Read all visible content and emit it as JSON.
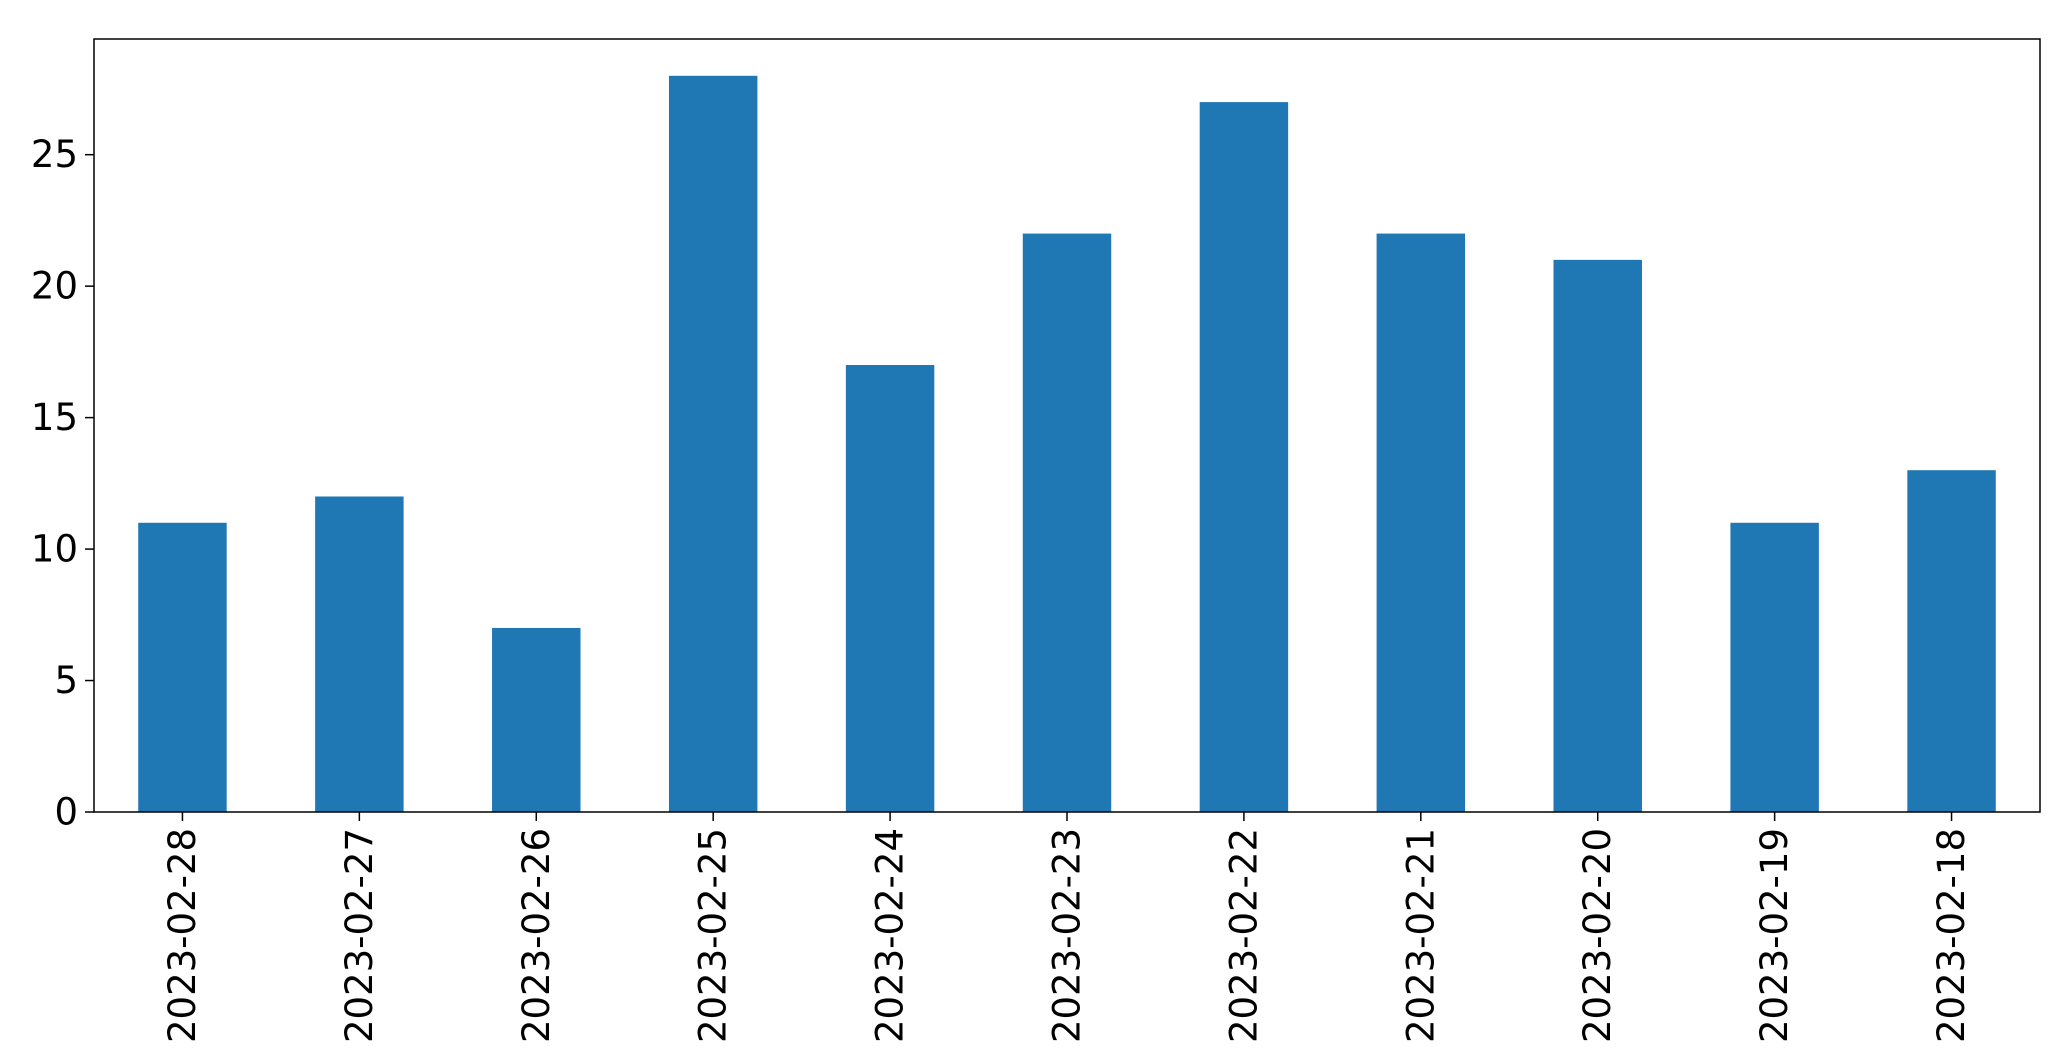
{
  "chart_data": {
    "type": "bar",
    "categories": [
      "2023-02-28",
      "2023-02-27",
      "2023-02-26",
      "2023-02-25",
      "2023-02-24",
      "2023-02-23",
      "2023-02-22",
      "2023-02-21",
      "2023-02-20",
      "2023-02-19",
      "2023-02-18"
    ],
    "values": [
      11,
      12,
      7,
      28,
      17,
      22,
      27,
      22,
      21,
      11,
      13
    ],
    "title": "",
    "xlabel": "",
    "ylabel": "",
    "ylim": [
      0,
      29.4
    ],
    "yticks": [
      0,
      5,
      10,
      15,
      20,
      25
    ],
    "grid": false,
    "bar_color": "#1f77b4"
  }
}
